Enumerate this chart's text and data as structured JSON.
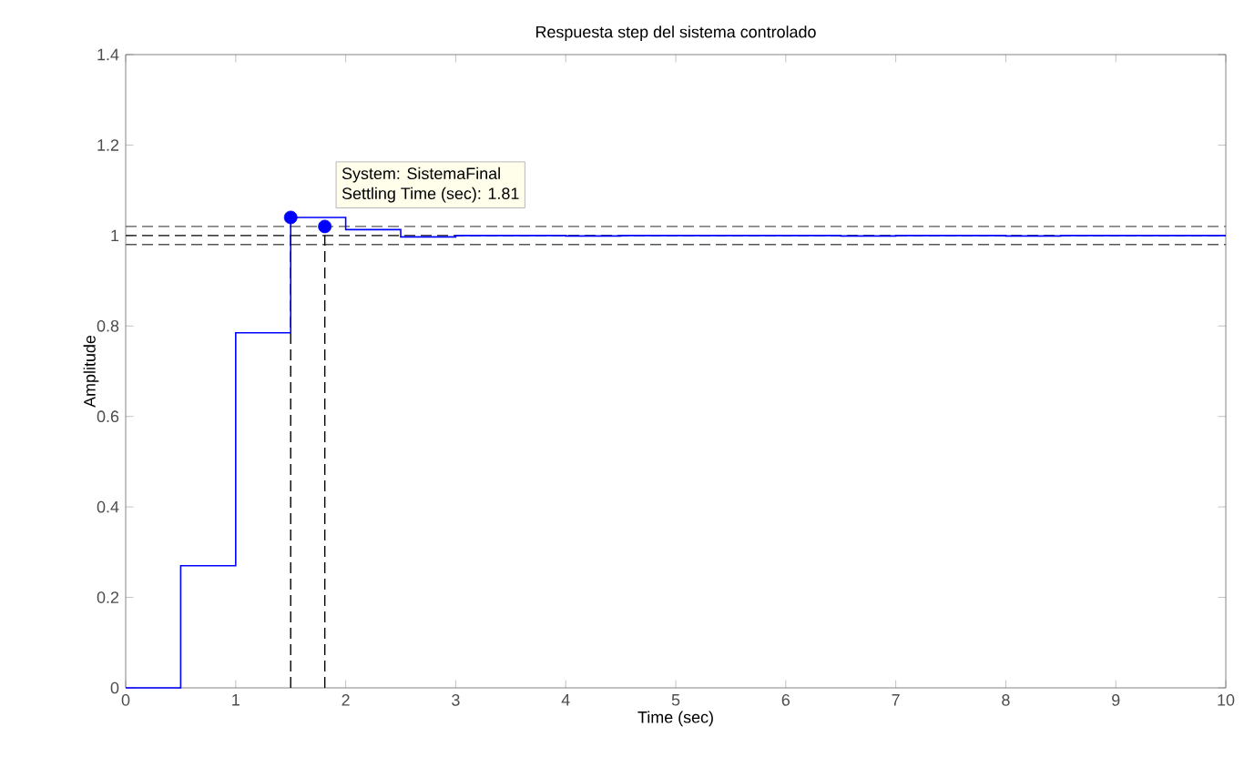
{
  "chart_data": {
    "type": "step",
    "title": "Respuesta step del sistema controlado",
    "xlabel": "Time (sec)",
    "ylabel": "Amplitude",
    "series": [
      {
        "color": "#0000ff",
        "x": [
          0,
          0.5,
          1,
          1.5,
          2,
          2.5,
          3,
          3.5,
          4,
          4.5,
          5,
          5.5,
          6,
          6.5,
          7,
          7.5,
          8,
          8.5,
          9,
          9.5,
          10
        ],
        "values": [
          0,
          0.27,
          0.785,
          1.04,
          1.013,
          0.997,
          1.0,
          1.0,
          0.999,
          1.0,
          1.0,
          1.0,
          1.0,
          0.999,
          1.0,
          1.0,
          0.999,
          1.0,
          1.0,
          1.0,
          1.0
        ]
      },
      {
        "type": "scatter",
        "color": "#0000ff",
        "marker": "circle",
        "x": [
          1.5,
          1.81
        ],
        "values": [
          1.04,
          1.02
        ]
      }
    ],
    "ref_lines": [
      {
        "axis": "y",
        "value": 1.0,
        "color": "#000000",
        "line_style": "dashed"
      },
      {
        "axis": "y",
        "value": 1.02,
        "color": "#555555",
        "line_style": "dashed"
      },
      {
        "axis": "y",
        "value": 0.98,
        "color": "#555555",
        "line_style": "dashed"
      },
      {
        "axis": "x",
        "value": 1.5,
        "color": "#000000",
        "line_style": "dashed"
      },
      {
        "axis": "x",
        "value": 1.81,
        "color": "#000000",
        "line_style": "dashed"
      }
    ],
    "annotations": [
      {
        "text": "System: SistemaFinal",
        "x": 1.81,
        "y": 1.02
      },
      "Settling Time (sec): 1.81"
    ],
    "xlim": [
      0,
      10
    ],
    "xticks": [
      0,
      1,
      2,
      3,
      4,
      5,
      6,
      7,
      8,
      9,
      10
    ],
    "ylim": [
      0,
      1.4
    ],
    "yticks": [
      0,
      0.2,
      0.4,
      0.6,
      0.8,
      1,
      1.2,
      1.4
    ],
    "grid": false
  }
}
